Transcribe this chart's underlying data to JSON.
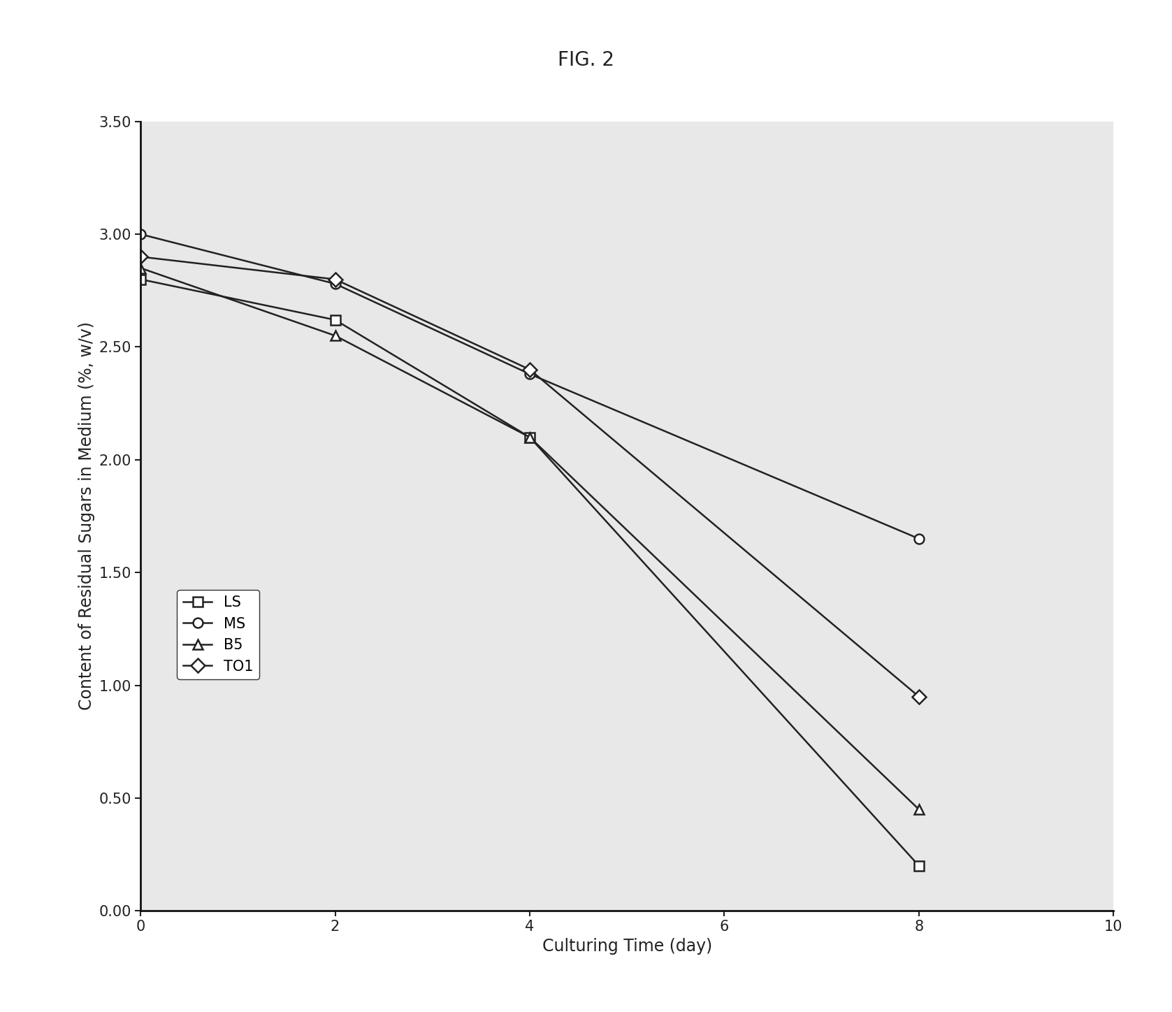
{
  "title": "FIG. 2",
  "xlabel": "Culturing Time (day)",
  "ylabel": "Content of Residual Sugars in Medium (%, w/v)",
  "xlim": [
    0,
    10
  ],
  "ylim": [
    0.0,
    3.5
  ],
  "yticks": [
    0.0,
    0.5,
    1.0,
    1.5,
    2.0,
    2.5,
    3.0,
    3.5
  ],
  "xticks": [
    0,
    2,
    4,
    6,
    8,
    10
  ],
  "series": [
    {
      "label": "LS",
      "x": [
        0,
        2,
        4,
        8
      ],
      "y": [
        2.8,
        2.62,
        2.1,
        0.2
      ],
      "marker": "s",
      "color": "#222222",
      "linestyle": "-"
    },
    {
      "label": "MS",
      "x": [
        0,
        2,
        4,
        8
      ],
      "y": [
        3.0,
        2.78,
        2.38,
        1.65
      ],
      "marker": "o",
      "color": "#222222",
      "linestyle": "-"
    },
    {
      "label": "B5",
      "x": [
        0,
        2,
        4,
        8
      ],
      "y": [
        2.85,
        2.55,
        2.1,
        0.45
      ],
      "marker": "^",
      "color": "#222222",
      "linestyle": "-"
    },
    {
      "label": "TO1",
      "x": [
        0,
        2,
        4,
        8
      ],
      "y": [
        2.9,
        2.8,
        2.4,
        0.95
      ],
      "marker": "D",
      "color": "#222222",
      "linestyle": "-"
    }
  ],
  "legend_loc": "center left",
  "background_color": "#ffffff",
  "plot_bg_color": "#e8e8e8",
  "title_fontsize": 20,
  "label_fontsize": 17,
  "tick_fontsize": 15,
  "legend_fontsize": 15,
  "linewidth": 1.8,
  "markersize": 10
}
